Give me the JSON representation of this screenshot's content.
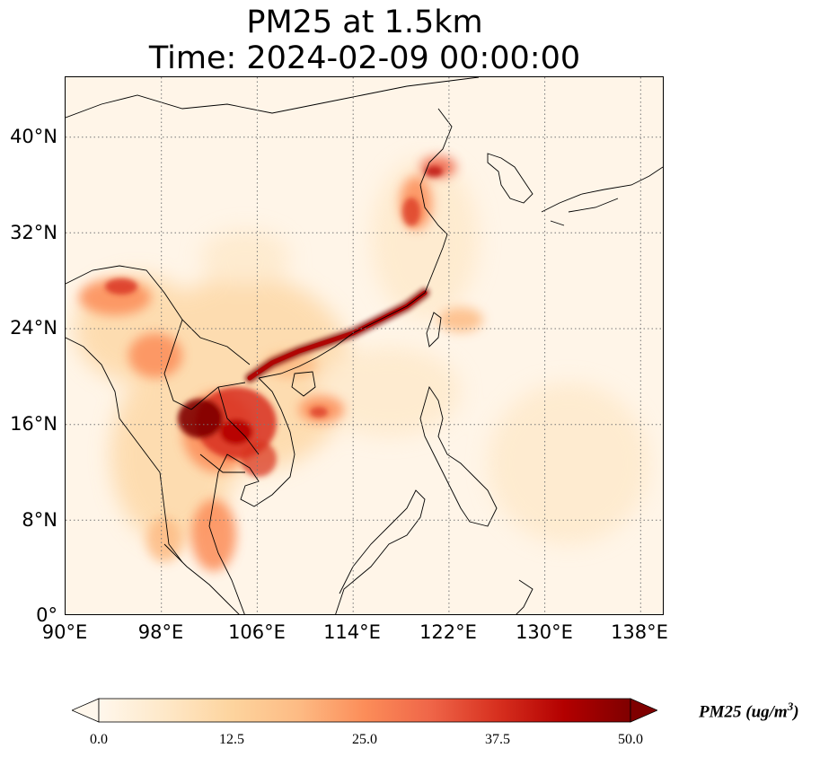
{
  "title": {
    "line1": "PM25 at 1.5km",
    "line2": "Time: 2024-02-09 00:00:00"
  },
  "map": {
    "lon_ticks": [
      "90°E",
      "98°E",
      "106°E",
      "114°E",
      "122°E",
      "130°E",
      "138°E"
    ],
    "lat_ticks": [
      "40°N",
      "32°N",
      "24°N",
      "16°N",
      "8°N",
      "0°"
    ],
    "lon_range": [
      90,
      140
    ],
    "lat_range": [
      0,
      45
    ],
    "gridlines": "dotted",
    "colormap": "OrRd",
    "background_color": "#fff5e8"
  },
  "colorbar": {
    "label_main": "PM25 (ug/m",
    "label_sup": "3",
    "label_close": ")",
    "ticks": [
      "0.0",
      "12.5",
      "25.0",
      "37.5",
      "50.0"
    ],
    "range": [
      0,
      50
    ],
    "extend": "both",
    "colors": [
      "#fff7ec",
      "#fee8c8",
      "#fdd49e",
      "#fdbb84",
      "#fc8d59",
      "#ef6548",
      "#d7301f",
      "#b30000",
      "#7f0000"
    ]
  }
}
